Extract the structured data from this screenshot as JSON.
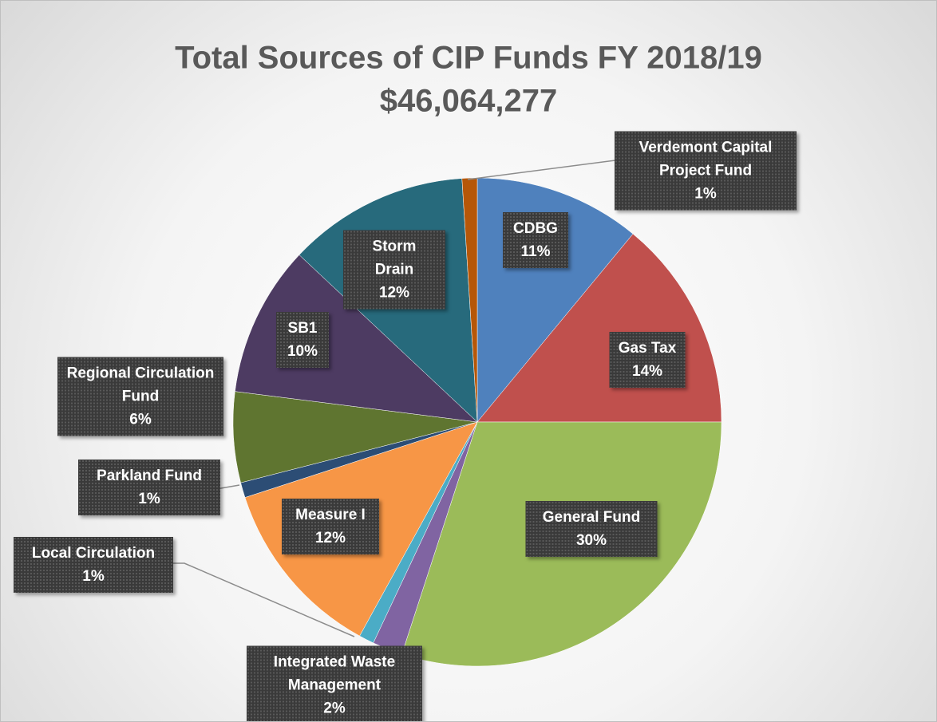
{
  "chart_data": {
    "type": "pie",
    "title": "Total Sources of CIP Funds FY 2018/19",
    "subtitle": "$46,064,277",
    "categories": [
      "CDBG",
      "Gas Tax",
      "General Fund",
      "Integrated Waste Management",
      "Local Circulation",
      "Measure I",
      "Parkland Fund",
      "Regional Circulation Fund",
      "SB1",
      "Storm Drain",
      "Verdemont Capital Project Fund"
    ],
    "values": [
      11,
      14,
      30,
      2,
      1,
      12,
      1,
      6,
      10,
      12,
      1
    ],
    "value_labels": [
      "11%",
      "14%",
      "30%",
      "2%",
      "1%",
      "12%",
      "1%",
      "6%",
      "10%",
      "12%",
      "1%"
    ],
    "colors": [
      "#4f81bd",
      "#c0504d",
      "#9bbb59",
      "#8064a2",
      "#4bacc6",
      "#f79646",
      "#2c4d75",
      "#5f7530",
      "#4d3b62",
      "#276a7c",
      "#b65708"
    ]
  }
}
